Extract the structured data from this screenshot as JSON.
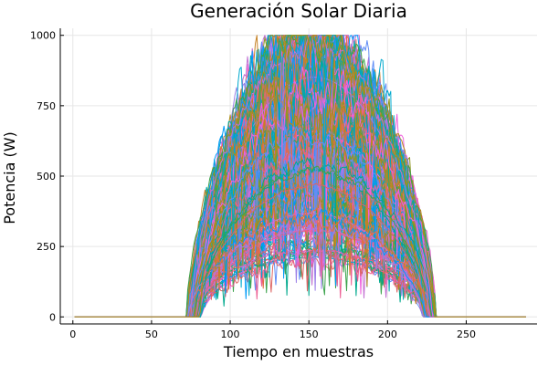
{
  "chart_data": {
    "type": "line",
    "title": "Generación Solar Diaria",
    "xlabel": "Tiempo en muestras",
    "ylabel": "Potencia (W)",
    "xlim": [
      -8,
      295
    ],
    "ylim": [
      -25,
      1025
    ],
    "x_ticks": [
      0,
      50,
      100,
      150,
      200,
      250
    ],
    "y_ticks": [
      0,
      250,
      500,
      750,
      1000
    ],
    "grid": true,
    "legend": "none",
    "samples_per_day": 288,
    "daylight_start_range": [
      72,
      82
    ],
    "daylight_end_range": [
      222,
      231
    ],
    "peak_power_range": [
      150,
      1000
    ],
    "series_count": 320,
    "palette": [
      "#009af9",
      "#e26f46",
      "#3da44d",
      "#c271d2",
      "#ac8e18",
      "#00a9ad",
      "#ed5e93",
      "#c68225",
      "#00a98d",
      "#8e971e",
      "#00a9cd",
      "#9b7fe8",
      "#618df6",
      "#f061dd",
      "#dd6462"
    ]
  }
}
